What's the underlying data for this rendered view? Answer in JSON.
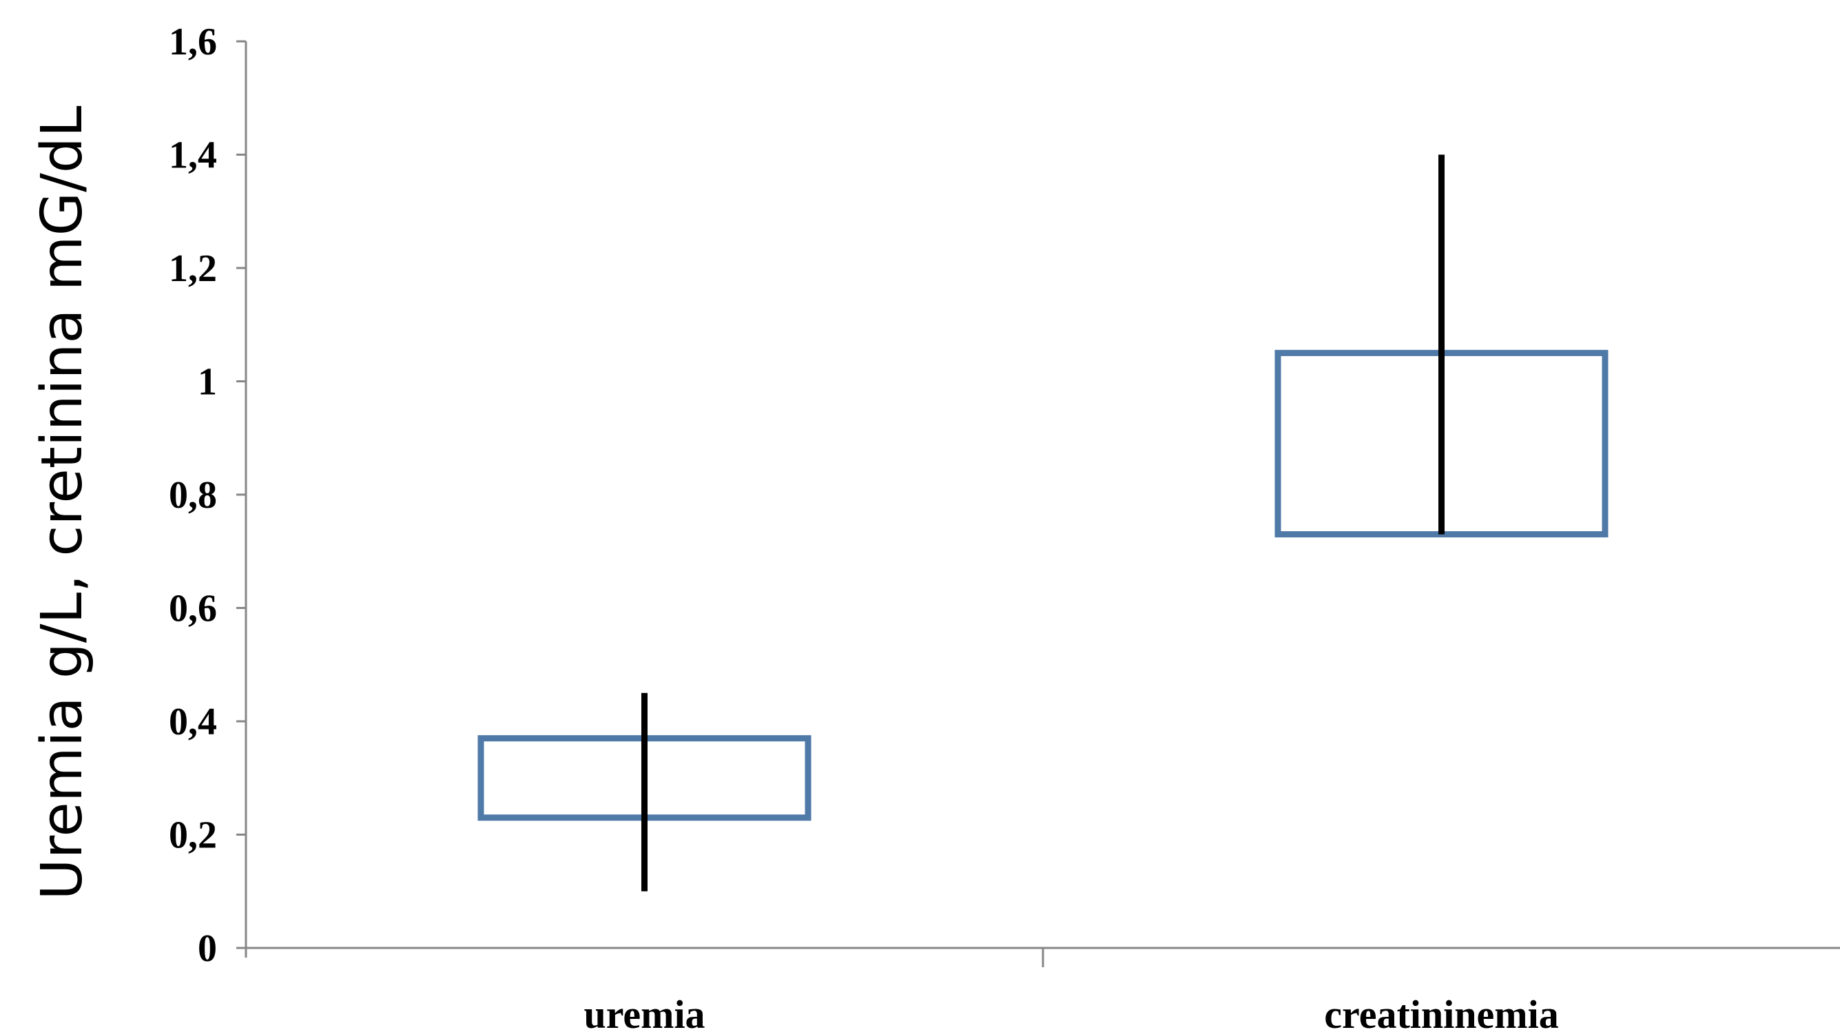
{
  "chart_data": {
    "type": "box",
    "title": "",
    "xlabel": "",
    "ylabel": "Uremia g/L, cretinina mG/dL",
    "ylim": [
      0,
      1.6
    ],
    "yticks": [
      {
        "value": 0,
        "label": "0"
      },
      {
        "value": 0.2,
        "label": "0,2"
      },
      {
        "value": 0.4,
        "label": "0,4"
      },
      {
        "value": 0.6,
        "label": "0,6"
      },
      {
        "value": 0.8,
        "label": "0,8"
      },
      {
        "value": 1.0,
        "label": "1"
      },
      {
        "value": 1.2,
        "label": "1,2"
      },
      {
        "value": 1.4,
        "label": "1,4"
      },
      {
        "value": 1.6,
        "label": "1,6"
      }
    ],
    "categories": [
      "uremia",
      "creatininemia"
    ],
    "boxes": [
      {
        "category": "uremia",
        "q1": 0.23,
        "q3": 0.37,
        "whisker_low": 0.1,
        "whisker_high": 0.45
      },
      {
        "category": "creatininemia",
        "q1": 0.73,
        "q3": 1.05,
        "whisker_low": 0.73,
        "whisker_high": 1.4
      }
    ],
    "grid": false,
    "legend": "none",
    "box_color": "#4F79A7",
    "whisker_color": "#000000",
    "axis_color": "#868686"
  }
}
